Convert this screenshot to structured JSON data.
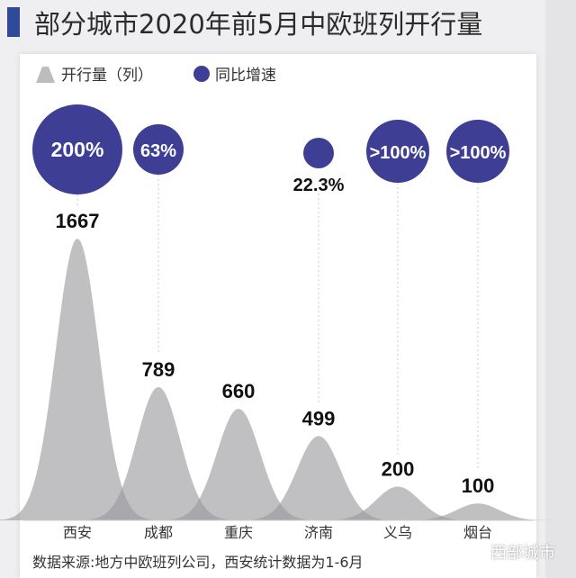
{
  "title": "部分城市2020年前5月中欧班列开行量",
  "watermark": "西部城市",
  "chart_data": {
    "type": "area",
    "title": "部分城市2020年前5月中欧班列开行量",
    "legend": [
      {
        "name": "开行量（列）",
        "shape": "triangle",
        "color": "#bdbdbf"
      },
      {
        "name": "同比增速",
        "shape": "circle",
        "color": "#3e3f94"
      }
    ],
    "legend_placement": "top-left",
    "categories": [
      "西安",
      "成都",
      "重庆",
      "济南",
      "义乌",
      "烟台"
    ],
    "values": [
      1667,
      789,
      660,
      499,
      200,
      100
    ],
    "value_labels": [
      "1667",
      "789",
      "660",
      "499",
      "200",
      "100"
    ],
    "growth_labels": [
      "200%",
      "63%",
      "",
      "22.3%",
      ">100%",
      ">100%"
    ],
    "growth_values": [
      200,
      63,
      null,
      22.3,
      100,
      100
    ],
    "grid": false,
    "source": "数据来源:地方中欧班列公司，西安统计数据为1-6月"
  },
  "colors": {
    "bubble": "#3e3f94",
    "peak": "#bdbdbf",
    "title_mark": "#2f4a9a"
  }
}
